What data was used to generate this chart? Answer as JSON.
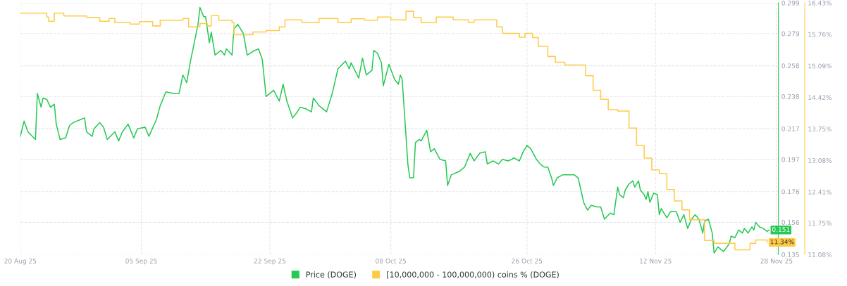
{
  "chart_data": {
    "type": "line",
    "xlim": [
      "2025-08-20",
      "2025-11-28T06:00"
    ],
    "xticks": [
      {
        "value": "2025-08-20",
        "label": "20 Aug 25"
      },
      {
        "value": "2025-09-05",
        "label": "05 Sep 25"
      },
      {
        "value": "2025-09-22",
        "label": "22 Sep 25"
      },
      {
        "value": "2025-10-08",
        "label": "08 Oct 25"
      },
      {
        "value": "2025-10-26",
        "label": "26 Oct 25"
      },
      {
        "value": "2025-11-12",
        "label": "12 Nov 25"
      },
      {
        "value": "2025-11-28",
        "label": "28 Nov 25"
      }
    ],
    "ylim": [
      0.135,
      0.299
    ],
    "yticks": [
      0.135,
      0.156,
      0.176,
      0.197,
      0.217,
      0.238,
      0.258,
      0.279,
      0.299
    ],
    "y2lim": [
      11.08,
      16.43
    ],
    "y2ticks": [
      {
        "value": 11.08,
        "label": "11.08%"
      },
      {
        "value": 11.75,
        "label": "11.75%"
      },
      {
        "value": 12.41,
        "label": "12.41%"
      },
      {
        "value": 13.08,
        "label": "13.08%"
      },
      {
        "value": 13.75,
        "label": "13.75%"
      },
      {
        "value": 14.42,
        "label": "14.42%"
      },
      {
        "value": 15.09,
        "label": "15.09%"
      },
      {
        "value": 15.76,
        "label": "15.76%"
      },
      {
        "value": 16.43,
        "label": "16.43%"
      }
    ],
    "grid": true,
    "legend": "bottom",
    "marker": "none",
    "line_style": "solid",
    "series": [
      {
        "name": "Price (DOGE)",
        "type": "line",
        "color": "#26c953",
        "x": [
          "2025-08-20T00:00",
          "2025-08-20T12:00",
          "2025-08-21T00:00",
          "2025-08-22T00:00",
          "2025-08-22T06:00",
          "2025-08-22T18:00",
          "2025-08-23T00:00",
          "2025-08-23T12:00",
          "2025-08-24T00:00",
          "2025-08-24T12:00",
          "2025-08-24T18:00",
          "2025-08-25T06:00",
          "2025-08-26T00:00",
          "2025-08-26T12:00",
          "2025-08-27T00:00",
          "2025-08-28T00:00",
          "2025-08-28T12:00",
          "2025-08-28T18:00",
          "2025-08-29T12:00",
          "2025-08-29T18:00",
          "2025-08-30T12:00",
          "2025-08-31T00:00",
          "2025-08-31T12:00",
          "2025-09-01T12:00",
          "2025-09-02T00:00",
          "2025-09-02T12:00",
          "2025-09-03T06:00",
          "2025-09-04T00:00",
          "2025-09-04T12:00",
          "2025-09-05T12:00",
          "2025-09-06T00:00",
          "2025-09-07T00:00",
          "2025-09-07T12:00",
          "2025-09-08T06:00",
          "2025-09-09T06:00",
          "2025-09-10T00:00",
          "2025-09-10T12:00",
          "2025-09-11T00:00",
          "2025-09-11T12:00",
          "2025-09-12T00:00",
          "2025-09-12T12:00",
          "2025-09-12T18:00",
          "2025-09-13T06:00",
          "2025-09-13T12:00",
          "2025-09-14T00:00",
          "2025-09-14T06:00",
          "2025-09-14T18:00",
          "2025-09-15T12:00",
          "2025-09-16T00:00",
          "2025-09-16T06:00",
          "2025-09-17T00:00",
          "2025-09-17T06:00",
          "2025-09-17T18:00",
          "2025-09-18T12:00",
          "2025-09-19T00:00",
          "2025-09-20T00:00",
          "2025-09-20T12:00",
          "2025-09-21T00:00",
          "2025-09-21T12:00",
          "2025-09-22T00:00",
          "2025-09-22T12:00",
          "2025-09-23T06:00",
          "2025-09-23T18:00",
          "2025-09-24T06:00",
          "2025-09-25T00:00",
          "2025-09-25T12:00",
          "2025-09-26T00:00",
          "2025-09-26T18:00",
          "2025-09-27T12:00",
          "2025-09-27T18:00",
          "2025-09-28T12:00",
          "2025-09-29T12:00",
          "2025-09-30T06:00",
          "2025-10-01T00:00",
          "2025-10-02T00:00",
          "2025-10-02T12:00",
          "2025-10-02T18:00",
          "2025-10-03T18:00",
          "2025-10-04T06:00",
          "2025-10-04T18:00",
          "2025-10-05T12:00",
          "2025-10-05T18:00",
          "2025-10-06T06:00",
          "2025-10-06T18:00",
          "2025-10-07T00:00",
          "2025-10-07T18:00",
          "2025-10-08T12:00",
          "2025-10-09T00:00",
          "2025-10-09T06:00",
          "2025-10-09T12:00",
          "2025-10-10T06:00",
          "2025-10-10T12:00",
          "2025-10-11T00:00",
          "2025-10-11T06:00",
          "2025-10-11T18:00",
          "2025-10-12T00:00",
          "2025-10-12T18:00",
          "2025-10-13T06:00",
          "2025-10-13T18:00",
          "2025-10-14T12:00",
          "2025-10-15T06:00",
          "2025-10-15T12:00",
          "2025-10-16T00:00",
          "2025-10-17T00:00",
          "2025-10-17T18:00",
          "2025-10-18T12:00",
          "2025-10-19T00:00",
          "2025-10-19T18:00",
          "2025-10-20T12:00",
          "2025-10-20T18:00",
          "2025-10-21T12:00",
          "2025-10-22T06:00",
          "2025-10-22T18:00",
          "2025-10-23T12:00",
          "2025-10-24T00:00",
          "2025-10-24T06:00",
          "2025-10-25T00:00",
          "2025-10-25T12:00",
          "2025-10-26T00:00",
          "2025-10-26T12:00",
          "2025-10-27T06:00",
          "2025-10-27T18:00",
          "2025-10-28T06:00",
          "2025-10-28T18:00",
          "2025-10-29T06:00",
          "2025-10-29T12:00",
          "2025-10-30T00:00",
          "2025-10-30T18:00",
          "2025-10-31T06:00",
          "2025-11-01T06:00",
          "2025-11-01T18:00",
          "2025-11-02T00:00",
          "2025-11-02T12:00",
          "2025-11-03T00:00",
          "2025-11-03T12:00",
          "2025-11-04T06:00",
          "2025-11-04T18:00",
          "2025-11-05T06:00",
          "2025-11-06T00:00",
          "2025-11-06T12:00",
          "2025-11-07T00:00",
          "2025-11-07T06:00",
          "2025-11-07T18:00",
          "2025-11-08T00:00",
          "2025-11-08T12:00",
          "2025-11-09T00:00",
          "2025-11-09T06:00",
          "2025-11-09T18:00",
          "2025-11-10T00:00",
          "2025-11-10T12:00",
          "2025-11-10T18:00",
          "2025-11-11T00:00",
          "2025-11-11T06:00",
          "2025-11-11T18:00",
          "2025-11-12T06:00",
          "2025-11-12T12:00",
          "2025-11-12T18:00",
          "2025-11-13T00:00",
          "2025-11-13T12:00",
          "2025-11-14T00:00",
          "2025-11-14T18:00",
          "2025-11-15T06:00",
          "2025-11-15T18:00",
          "2025-11-16T06:00",
          "2025-11-16T18:00",
          "2025-11-17T06:00",
          "2025-11-17T18:00",
          "2025-11-18T06:00",
          "2025-11-18T12:00",
          "2025-11-19T00:00",
          "2025-11-19T12:00",
          "2025-11-19T18:00",
          "2025-11-20T06:00",
          "2025-11-21T00:00",
          "2025-11-21T18:00",
          "2025-11-22T00:00",
          "2025-11-22T12:00",
          "2025-11-23T00:00",
          "2025-11-23T12:00",
          "2025-11-23T18:00",
          "2025-11-24T06:00",
          "2025-11-24T18:00",
          "2025-11-25T00:00",
          "2025-11-25T06:00",
          "2025-11-25T18:00",
          "2025-11-26T06:00",
          "2025-11-26T18:00",
          "2025-11-27T00:00"
        ],
        "values": [
          0.212,
          0.222,
          0.215,
          0.21,
          0.24,
          0.231,
          0.237,
          0.236,
          0.231,
          0.233,
          0.22,
          0.21,
          0.211,
          0.219,
          0.221,
          0.223,
          0.224,
          0.215,
          0.212,
          0.217,
          0.221,
          0.218,
          0.21,
          0.215,
          0.209,
          0.215,
          0.22,
          0.211,
          0.217,
          0.218,
          0.212,
          0.223,
          0.232,
          0.241,
          0.24,
          0.24,
          0.252,
          0.247,
          0.261,
          0.273,
          0.285,
          0.296,
          0.29,
          0.29,
          0.273,
          0.28,
          0.265,
          0.268,
          0.265,
          0.269,
          0.265,
          0.282,
          0.285,
          0.279,
          0.265,
          0.268,
          0.269,
          0.262,
          0.238,
          0.24,
          0.242,
          0.235,
          0.246,
          0.235,
          0.224,
          0.227,
          0.231,
          0.23,
          0.228,
          0.237,
          0.232,
          0.228,
          0.24,
          0.256,
          0.261,
          0.256,
          0.26,
          0.25,
          0.263,
          0.252,
          0.255,
          0.268,
          0.266,
          0.26,
          0.245,
          0.259,
          0.249,
          0.246,
          0.252,
          0.249,
          0.194,
          0.185,
          0.185,
          0.208,
          0.21,
          0.209,
          0.216,
          0.202,
          0.204,
          0.197,
          0.196,
          0.18,
          0.187,
          0.189,
          0.192,
          0.201,
          0.196,
          0.201,
          0.202,
          0.194,
          0.196,
          0.194,
          0.197,
          0.196,
          0.197,
          0.198,
          0.196,
          0.202,
          0.206,
          0.204,
          0.197,
          0.194,
          0.192,
          0.192,
          0.185,
          0.18,
          0.185,
          0.187,
          0.187,
          0.187,
          0.185,
          0.18,
          0.169,
          0.164,
          0.167,
          0.166,
          0.166,
          0.158,
          0.162,
          0.161,
          0.179,
          0.174,
          0.172,
          0.177,
          0.181,
          0.183,
          0.179,
          0.183,
          0.177,
          0.174,
          0.171,
          0.176,
          0.169,
          0.175,
          0.174,
          0.161,
          0.165,
          0.163,
          0.159,
          0.163,
          0.163,
          0.156,
          0.161,
          0.152,
          0.158,
          0.161,
          0.158,
          0.149,
          0.157,
          0.158,
          0.149,
          0.136,
          0.14,
          0.137,
          0.142,
          0.147,
          0.146,
          0.151,
          0.149,
          0.152,
          0.149,
          0.153,
          0.151,
          0.156,
          0.153,
          0.152,
          0.15,
          0.151
        ],
        "value_labels": [
          null,
          null,
          null,
          null,
          null,
          null,
          null,
          null,
          null,
          null,
          null,
          null,
          null,
          null,
          null,
          null,
          null,
          null,
          null,
          null,
          null,
          null,
          null,
          null,
          null,
          null,
          null,
          null,
          null,
          null,
          null,
          null,
          null,
          null,
          null,
          null,
          null,
          null,
          null,
          null,
          null,
          null,
          null,
          null,
          null,
          null,
          null,
          null,
          null,
          null,
          null,
          null,
          null,
          null,
          null,
          null,
          null,
          null,
          null,
          null,
          null,
          null,
          null,
          null,
          null,
          null,
          null,
          null,
          null,
          null,
          null,
          null,
          null,
          null,
          null,
          null,
          null,
          null,
          null,
          null,
          null,
          null,
          null,
          null,
          null,
          null,
          null,
          null,
          null,
          null,
          null,
          null,
          null,
          null,
          null,
          null,
          null,
          null,
          null,
          null,
          null,
          null,
          null,
          null,
          null,
          null,
          null,
          null,
          null,
          null,
          null,
          null,
          null,
          null,
          null,
          null,
          null,
          null,
          null,
          null,
          null,
          null,
          null,
          null,
          null,
          null,
          null,
          null,
          null,
          null,
          null,
          null,
          null,
          null,
          null,
          null,
          null,
          null,
          null,
          null,
          null,
          null,
          null,
          null,
          null,
          null,
          null,
          null,
          null,
          null,
          null,
          null,
          null,
          null,
          null,
          null,
          null,
          null,
          null,
          null,
          null,
          null,
          null,
          null,
          null,
          null,
          null,
          null,
          null,
          null,
          null,
          null,
          null,
          null,
          null,
          null,
          null,
          null,
          null,
          null,
          null,
          null,
          null,
          null,
          null,
          null,
          null,
          "0.151"
        ]
      },
      {
        "name": "[10,000,000 - 100,000,000) coins % (DOGE)",
        "type": "step",
        "axis": "y2",
        "color": "#ffcb47",
        "x": [
          "2025-08-20T00:00",
          "2025-08-23T12:00",
          "2025-08-23T18:00",
          "2025-08-24T12:00",
          "2025-08-25T18:00",
          "2025-08-28T18:00",
          "2025-08-30T12:00",
          "2025-08-31T18:00",
          "2025-09-01T12:00",
          "2025-09-03T12:00",
          "2025-09-04T18:00",
          "2025-09-06T12:00",
          "2025-09-07T12:00",
          "2025-09-10T12:00",
          "2025-09-11T06:00",
          "2025-09-12T18:00",
          "2025-09-13T18:00",
          "2025-09-14T06:00",
          "2025-09-15T06:00",
          "2025-09-17T00:00",
          "2025-09-17T06:00",
          "2025-09-19T18:00",
          "2025-09-21T12:00",
          "2025-09-23T06:00",
          "2025-09-24T00:00",
          "2025-09-26T06:00",
          "2025-09-28T12:00",
          "2025-10-01T00:00",
          "2025-10-02T18:00",
          "2025-10-04T12:00",
          "2025-10-06T06:00",
          "2025-10-08T00:00",
          "2025-10-10T00:00",
          "2025-10-11T00:00",
          "2025-10-12T00:00",
          "2025-10-14T00:00",
          "2025-10-16T06:00",
          "2025-10-18T06:00",
          "2025-10-19T00:00",
          "2025-10-22T00:00",
          "2025-10-22T18:00",
          "2025-10-25T00:00",
          "2025-10-25T18:00",
          "2025-10-26T18:00",
          "2025-10-27T12:00",
          "2025-10-28T18:00",
          "2025-10-29T18:00",
          "2025-10-31T00:00",
          "2025-11-02T18:00",
          "2025-11-03T18:00",
          "2025-11-04T18:00",
          "2025-11-05T18:00",
          "2025-11-07T00:00",
          "2025-11-08T12:00",
          "2025-11-09T12:00",
          "2025-11-10T12:00",
          "2025-11-11T12:00",
          "2025-11-12T12:00",
          "2025-11-13T12:00",
          "2025-11-14T12:00",
          "2025-11-15T12:00",
          "2025-11-16T12:00",
          "2025-11-18T12:00",
          "2025-11-19T18:00",
          "2025-11-22T12:00",
          "2025-11-24T12:00",
          "2025-11-25T06:00",
          "2025-11-26T18:00"
        ],
        "values": [
          16.21,
          16.13,
          16.04,
          16.21,
          16.15,
          16.12,
          16.04,
          16.1,
          16.01,
          15.98,
          16.03,
          15.94,
          16.06,
          16.1,
          15.92,
          15.99,
          15.94,
          16.16,
          16.06,
          16.01,
          15.75,
          15.81,
          15.84,
          15.92,
          16.07,
          16.01,
          16.1,
          16.01,
          16.09,
          16.06,
          16.13,
          16.07,
          16.25,
          16.12,
          16.01,
          16.13,
          16.07,
          16.01,
          16.07,
          15.92,
          15.78,
          15.7,
          15.78,
          15.69,
          15.51,
          15.29,
          15.17,
          15.11,
          14.88,
          14.57,
          14.38,
          14.16,
          14.13,
          13.77,
          13.4,
          13.13,
          12.88,
          12.8,
          12.46,
          12.22,
          12.03,
          11.82,
          11.38,
          11.32,
          11.18,
          11.32,
          11.39,
          11.34
        ],
        "value_labels": [
          null,
          null,
          null,
          null,
          null,
          null,
          null,
          null,
          null,
          null,
          null,
          null,
          null,
          null,
          null,
          null,
          null,
          null,
          null,
          null,
          null,
          null,
          null,
          null,
          null,
          null,
          null,
          null,
          null,
          null,
          null,
          null,
          null,
          null,
          null,
          null,
          null,
          null,
          null,
          null,
          null,
          null,
          null,
          null,
          null,
          null,
          null,
          null,
          null,
          null,
          null,
          null,
          null,
          null,
          null,
          null,
          null,
          null,
          null,
          null,
          null,
          null,
          null,
          null,
          null,
          null,
          null,
          "11.34%"
        ]
      }
    ]
  }
}
